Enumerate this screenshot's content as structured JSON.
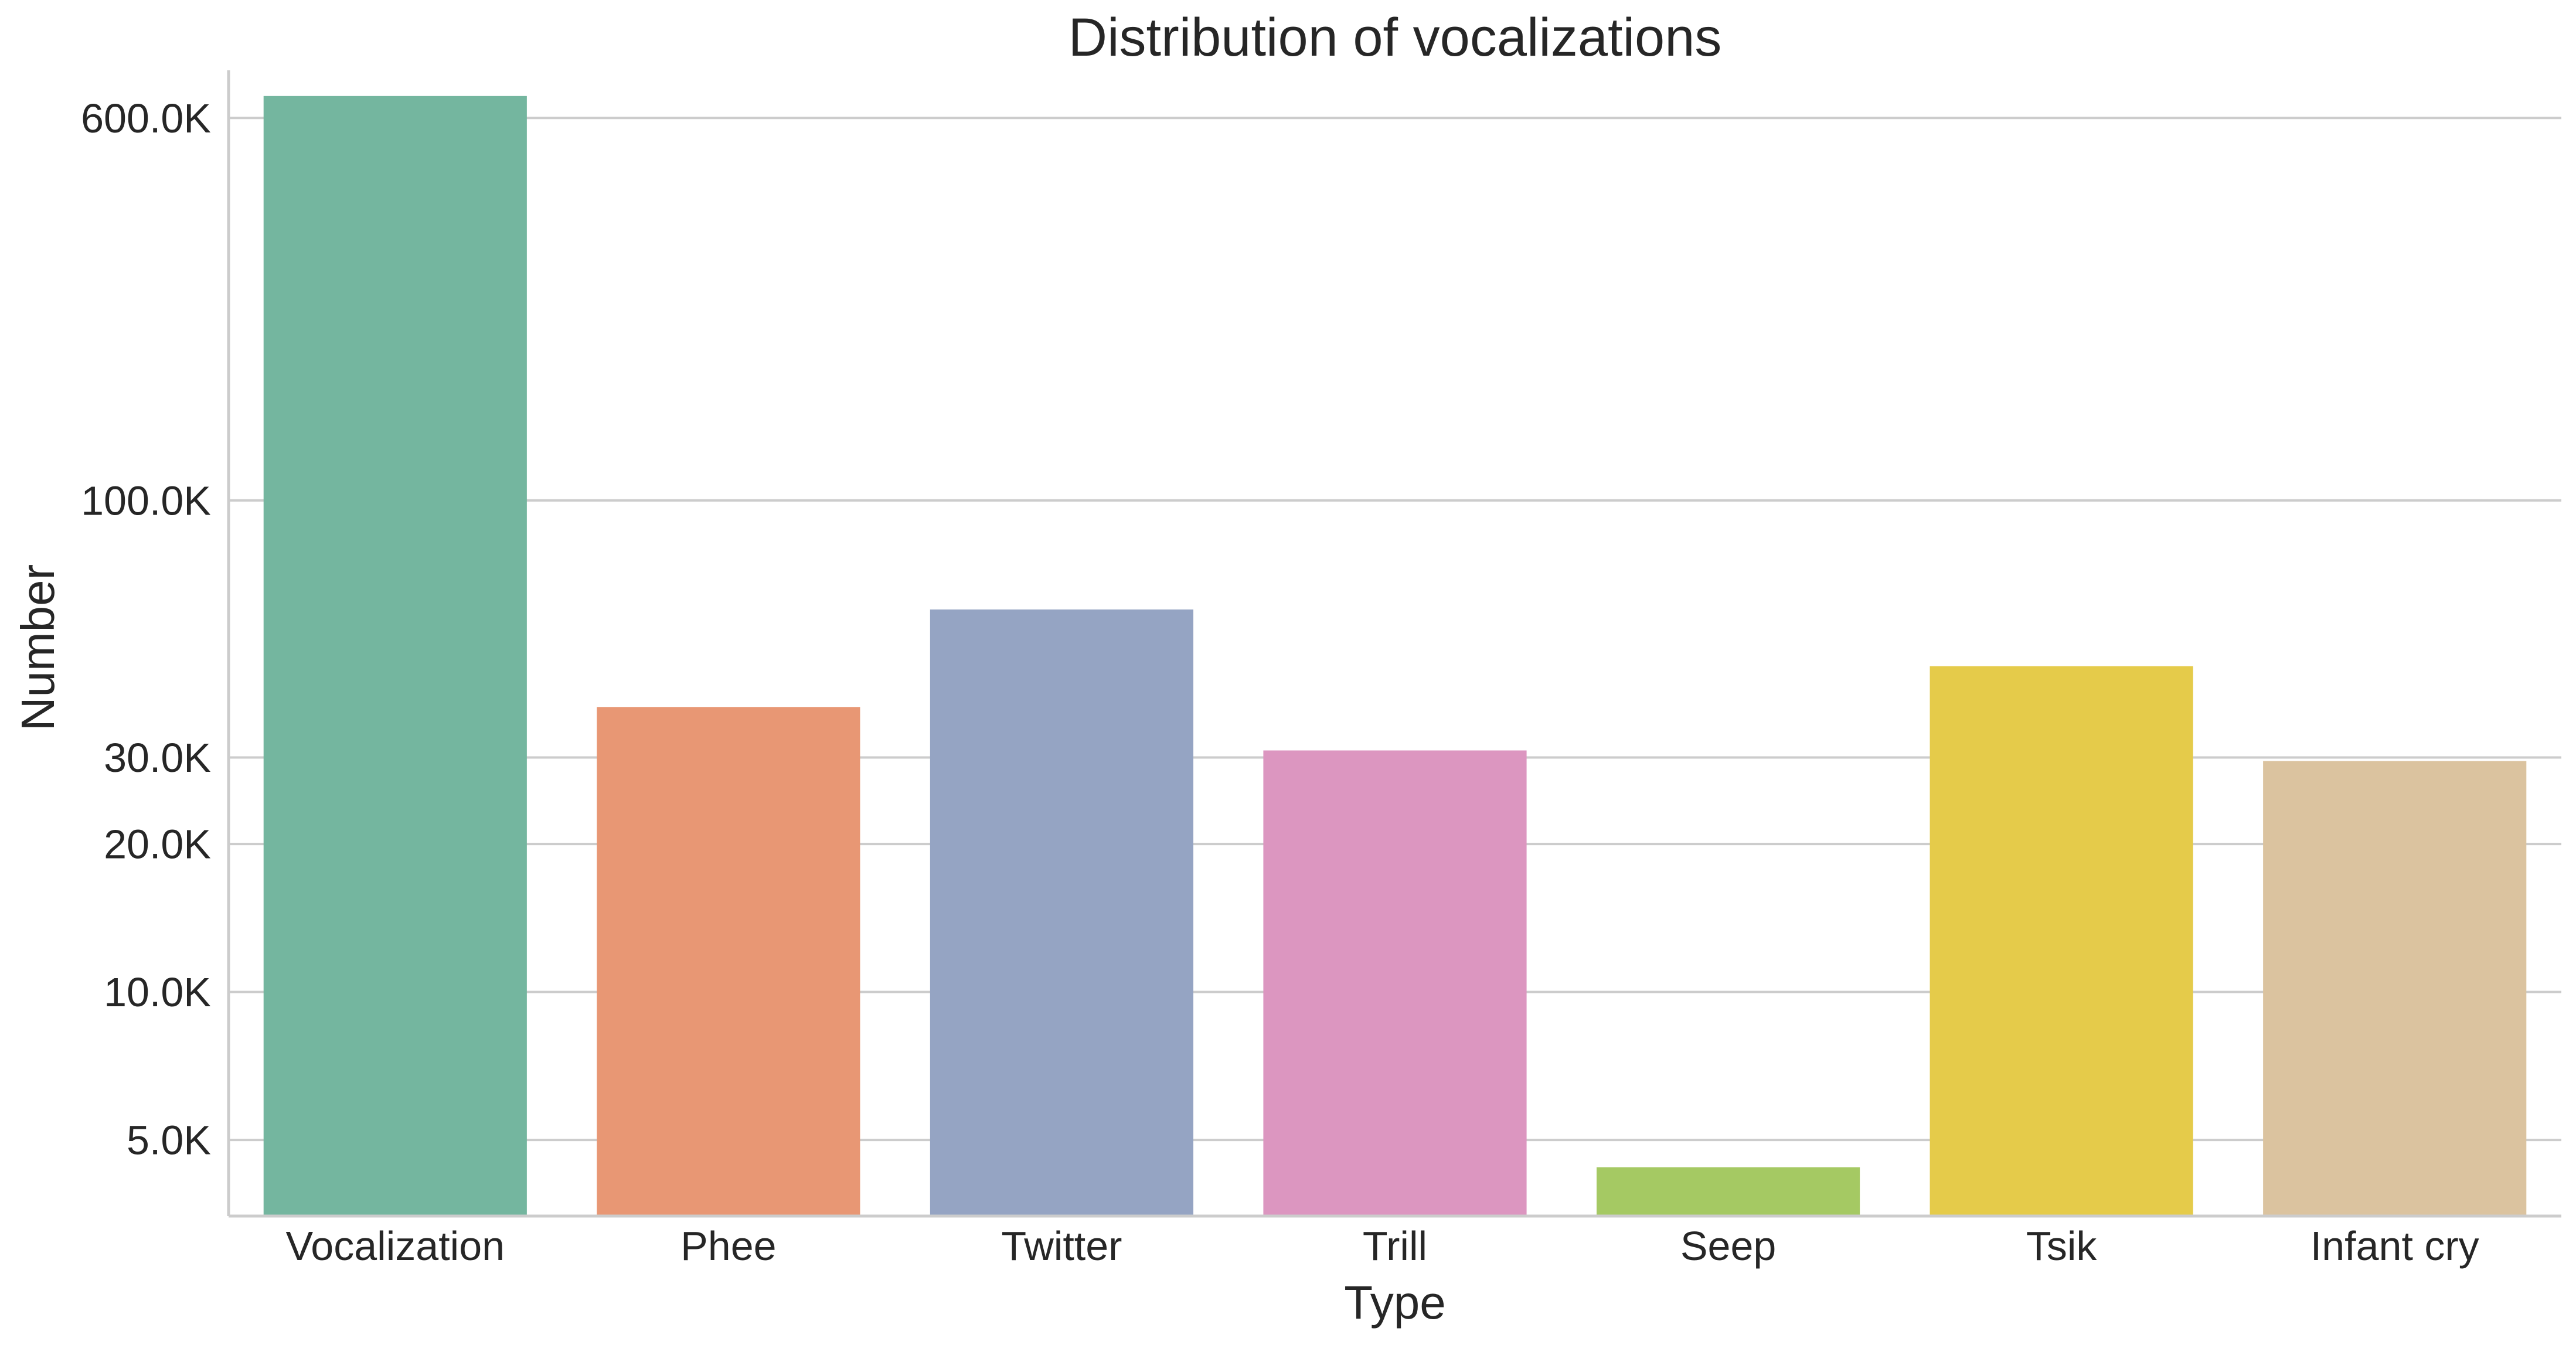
{
  "chart_data": {
    "type": "bar",
    "title": "Distribution of vocalizations",
    "xlabel": "Type",
    "ylabel": "Number",
    "y_scale": "log",
    "ylim": [
      3500,
      750000
    ],
    "grid": "horizontal",
    "categories": [
      "Vocalization",
      "Phee",
      "Twitter",
      "Trill",
      "Seep",
      "Tsik",
      "Infant cry"
    ],
    "values": [
      665000,
      38000,
      60000,
      31000,
      4400,
      46000,
      29500
    ],
    "colors": [
      "#74b69f",
      "#e89774",
      "#95a4c3",
      "#dc96c0",
      "#a5c963",
      "#e5cb4a",
      "#dbc39f"
    ],
    "yticks": [
      {
        "value": 5000,
        "label": "5.0K"
      },
      {
        "value": 10000,
        "label": "10.0K"
      },
      {
        "value": 20000,
        "label": "20.0K"
      },
      {
        "value": 30000,
        "label": "30.0K"
      },
      {
        "value": 100000,
        "label": "100.0K"
      },
      {
        "value": 600000,
        "label": "600.0K"
      }
    ]
  }
}
